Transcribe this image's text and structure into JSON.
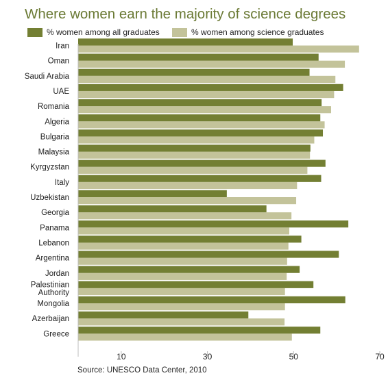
{
  "colors": {
    "title": "#6b7a35",
    "series_all": "#737f33",
    "series_science": "#c3c39a",
    "axis": "#bcbcbc",
    "text": "#222222"
  },
  "chart_data": {
    "type": "bar",
    "orientation": "horizontal",
    "title": "Where women earn the majority of science degrees",
    "source": "Source: UNESCO Data Center, 2010",
    "categories": [
      "Iran",
      "Oman",
      "Saudi Arabia",
      "UAE",
      "Romania",
      "Algeria",
      "Bulgaria",
      "Malaysia",
      "Kyrgyzstan",
      "Italy",
      "Uzbekistan",
      "Georgia",
      "Panama",
      "Lebanon",
      "Argentina",
      "Jordan",
      "Palestinian Authority",
      "Mongolia",
      "Azerbaijan",
      "Greece"
    ],
    "category_lines": [
      [
        "Iran"
      ],
      [
        "Oman"
      ],
      [
        "Saudi Arabia"
      ],
      [
        "UAE"
      ],
      [
        "Romania"
      ],
      [
        "Algeria"
      ],
      [
        "Bulgaria"
      ],
      [
        "Malaysia"
      ],
      [
        "Kyrgyzstan"
      ],
      [
        "Italy"
      ],
      [
        "Uzbekistan"
      ],
      [
        "Georgia"
      ],
      [
        "Panama"
      ],
      [
        "Lebanon"
      ],
      [
        "Argentina"
      ],
      [
        "Jordan"
      ],
      [
        "Palestinian",
        "Authority"
      ],
      [
        "Mongolia"
      ],
      [
        "Azerbaijan"
      ],
      [
        "Greece"
      ]
    ],
    "series": [
      {
        "name": "% women among all graduates",
        "values": [
          49.8,
          55.8,
          53.7,
          61.5,
          56.5,
          56.2,
          56.8,
          53.9,
          57.4,
          56.4,
          34.5,
          43.7,
          62.7,
          51.8,
          60.5,
          51.4,
          54.6,
          62.0,
          39.5,
          56.2
        ]
      },
      {
        "name": "% women among science graduates",
        "values": [
          65.2,
          61.9,
          59.7,
          59.4,
          58.7,
          57.2,
          54.8,
          53.8,
          53.2,
          50.8,
          50.6,
          49.5,
          49.0,
          48.8,
          48.5,
          48.4,
          48.0,
          48.0,
          47.9,
          49.6
        ]
      }
    ],
    "x_ticks": [
      10,
      30,
      50,
      70
    ],
    "xlim": [
      0,
      70
    ],
    "grid": false,
    "legend_position": "top-left"
  }
}
